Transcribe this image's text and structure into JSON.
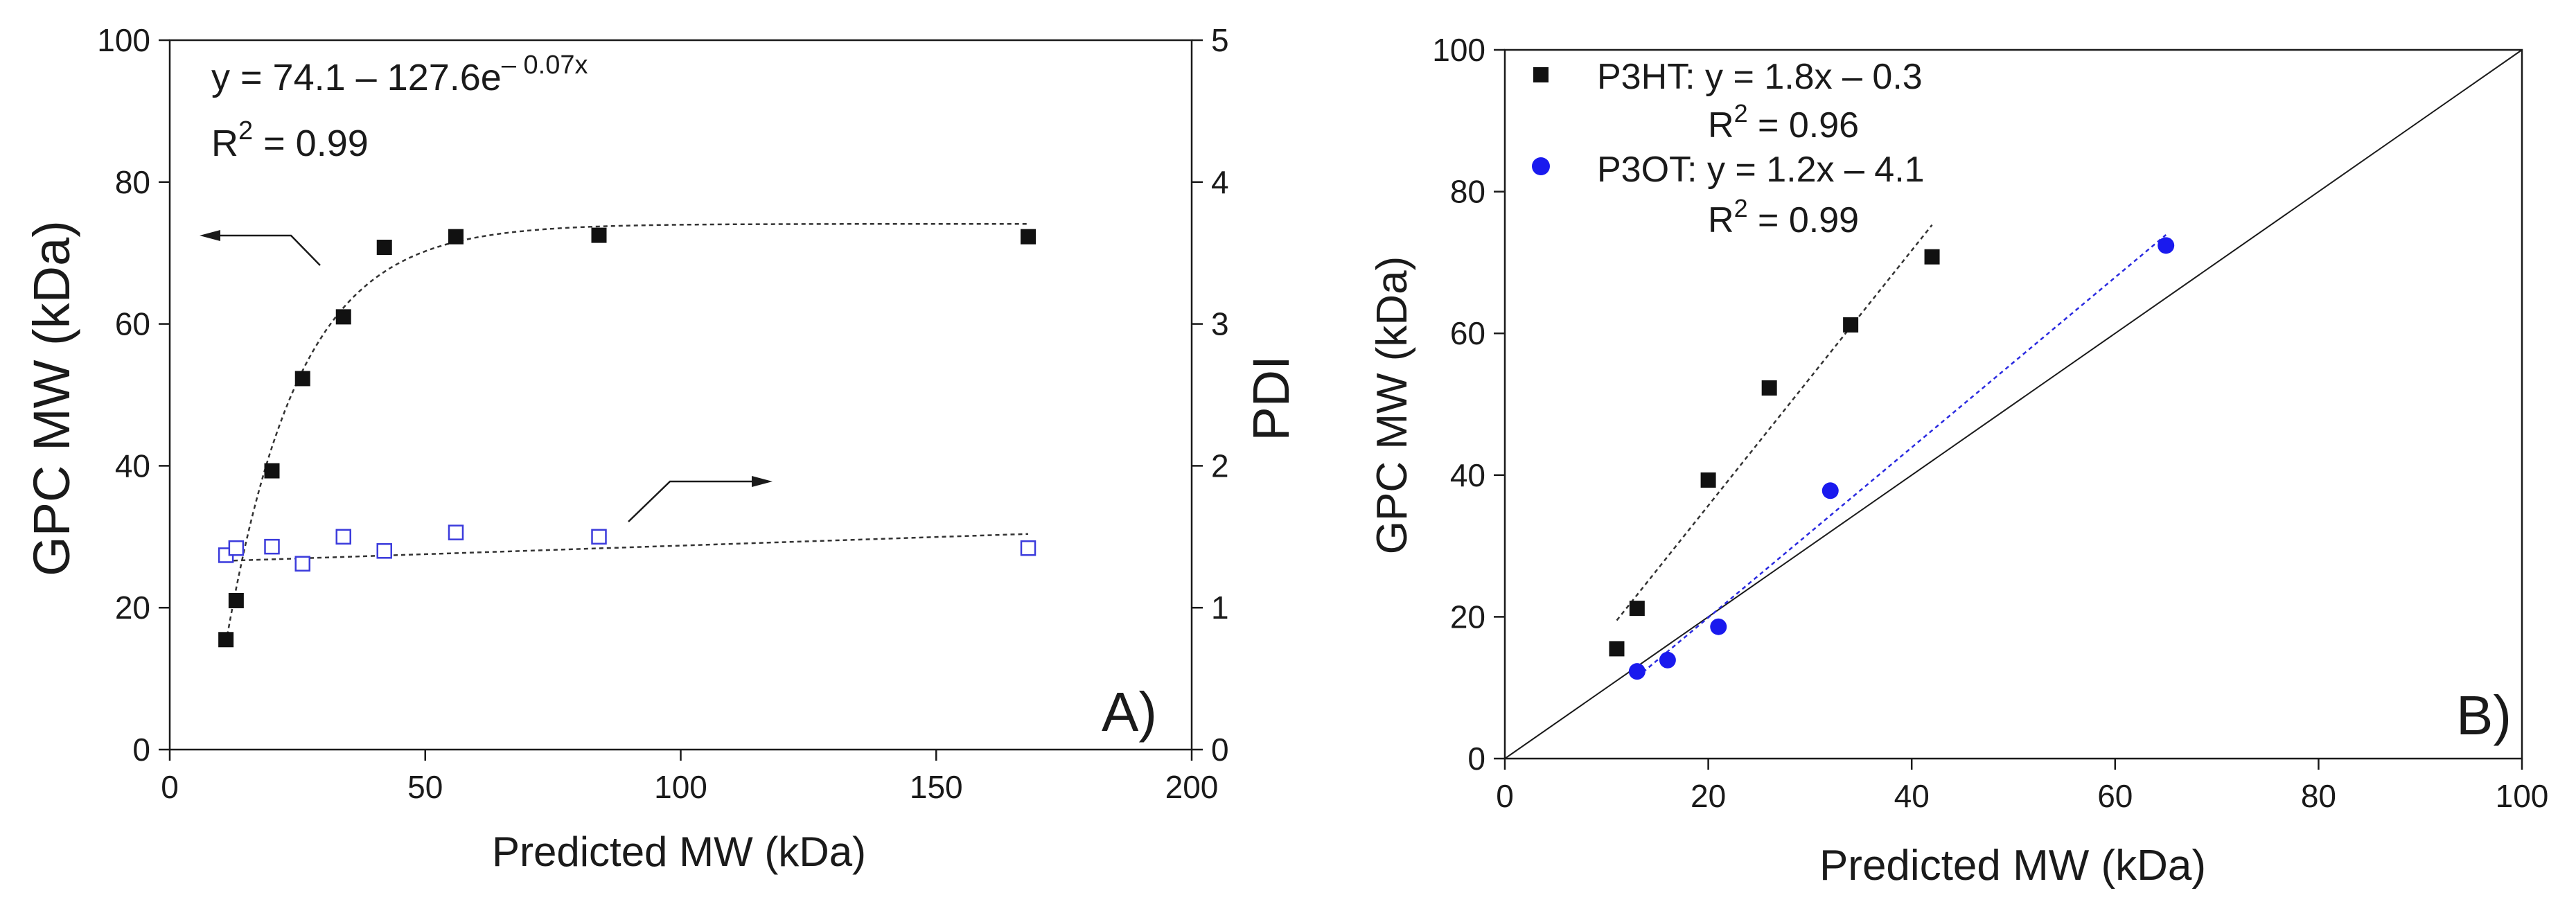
{
  "chart_data": [
    {
      "type": "scatter",
      "panel_label": "A)",
      "xlabel": "Predicted MW (kDa)",
      "ylabel": "GPC MW (kDa)",
      "y2label": "PDI",
      "xlim": [
        0,
        200
      ],
      "ylim": [
        0,
        100
      ],
      "y2lim": [
        0,
        5
      ],
      "xticks": [
        "0",
        "50",
        "100",
        "150",
        "200"
      ],
      "yticks": [
        "0",
        "20",
        "40",
        "60",
        "80",
        "100"
      ],
      "y2ticks": [
        "0",
        "1",
        "2",
        "3",
        "4",
        "5"
      ],
      "equation": {
        "base": "y = 74.1 – 127.6e",
        "exp": "– 0.07x"
      },
      "r2": {
        "label": "R",
        "exp": "2",
        "rest": " = 0.99"
      },
      "series": [
        {
          "name": "GPC MW",
          "axis": "left",
          "marker": "filled-square",
          "color": "#111111",
          "x": [
            11,
            13,
            20,
            26,
            34,
            42,
            56,
            84,
            168
          ],
          "y": [
            15.5,
            21,
            39.3,
            52.3,
            61,
            70.8,
            72.3,
            72.5,
            72.3
          ]
        },
        {
          "name": "PDI",
          "axis": "right",
          "marker": "open-square",
          "color": "#3b3bdc",
          "x": [
            11,
            13,
            20,
            26,
            34,
            42,
            56,
            84,
            168
          ],
          "y": [
            1.37,
            1.42,
            1.43,
            1.31,
            1.5,
            1.4,
            1.53,
            1.5,
            1.42
          ]
        }
      ],
      "fits": [
        {
          "name": "exponential fit",
          "axis": "left",
          "model": "74.1 - 127.6*exp(-0.07x)",
          "a": 74.1,
          "b": 127.6,
          "k": 0.07,
          "x_range": [
            11,
            168
          ]
        },
        {
          "name": "PDI linear trend",
          "axis": "right",
          "model": "linear",
          "points": [
            [
              11,
              1.33
            ],
            [
              168,
              1.52
            ]
          ]
        }
      ]
    },
    {
      "type": "scatter",
      "panel_label": "B)",
      "xlabel": "Predicted MW (kDa)",
      "ylabel": "GPC MW (kDa)",
      "xlim": [
        0,
        100
      ],
      "ylim": [
        0,
        100
      ],
      "xticks": [
        "0",
        "20",
        "40",
        "60",
        "80",
        "100"
      ],
      "yticks": [
        "0",
        "20",
        "40",
        "60",
        "80",
        "100"
      ],
      "legend_position": "top-left",
      "legend": [
        {
          "name": "P3HT",
          "line1": "P3HT: y = 1.8x – 0.3",
          "r2": {
            "label": "R",
            "exp": "2",
            "rest": " = 0.96"
          }
        },
        {
          "name": "P3OT",
          "line1": "P3OT: y = 1.2x – 4.1",
          "r2": {
            "label": "R",
            "exp": "2",
            "rest": " = 0.99"
          }
        }
      ],
      "series": [
        {
          "name": "P3HT",
          "marker": "filled-square",
          "color": "#111111",
          "x": [
            11,
            13,
            20,
            26,
            34,
            42
          ],
          "y": [
            15.5,
            21.2,
            39.3,
            52.3,
            61.2,
            70.8
          ],
          "fit": {
            "slope": 1.8,
            "intercept": -0.3,
            "x_range": [
              11,
              42
            ]
          }
        },
        {
          "name": "P3OT",
          "marker": "filled-circle",
          "color": "#1a1aee",
          "x": [
            13,
            16,
            21,
            32,
            65
          ],
          "y": [
            12.3,
            13.9,
            18.6,
            37.8,
            72.4
          ],
          "fit": {
            "slope": 1.2,
            "intercept": -4.1,
            "x_range": [
              13,
              65
            ]
          }
        }
      ],
      "reference_line": {
        "name": "y = x",
        "color": "#1a1a1a"
      }
    }
  ]
}
